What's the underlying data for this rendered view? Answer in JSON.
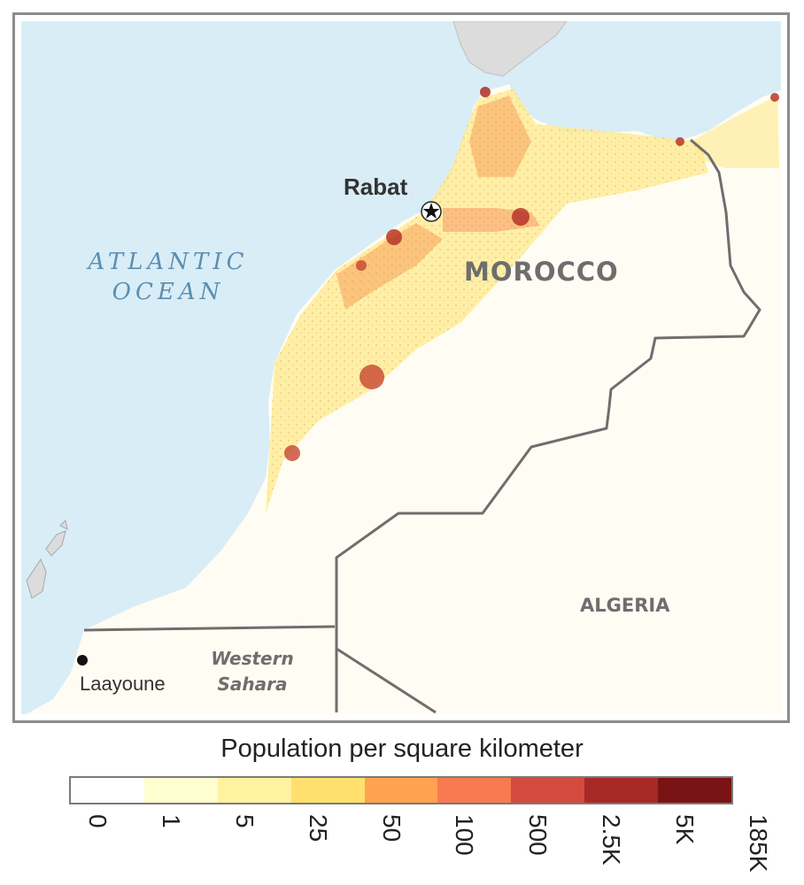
{
  "map": {
    "labels": {
      "ocean_line1": "ATLANTIC",
      "ocean_line2": "OCEAN",
      "capital": "Rabat",
      "country": "MOROCCO",
      "neighbor": "ALGERIA",
      "city": "Laayoune",
      "region_line1": "Western",
      "region_line2": "Sahara"
    },
    "colors": {
      "ocean": "#d9edf7",
      "land_neighbor": "#dcdcdc",
      "land_base": "#fffdf3",
      "border": "#6e6e6e",
      "frame": "#8c8c8c"
    },
    "symbols": {
      "capital": "star-in-circle",
      "city": "dot"
    }
  },
  "legend": {
    "title": "Population per square kilometer",
    "colors": [
      "#ffffff",
      "#fffed0",
      "#fff3a0",
      "#ffe06e",
      "#ffa350",
      "#f87a50",
      "#d44a3d",
      "#a82826",
      "#7a1414"
    ],
    "ticks": [
      "0",
      "1",
      "5",
      "25",
      "50",
      "100",
      "500",
      "2.5K",
      "5K",
      "185K"
    ]
  }
}
